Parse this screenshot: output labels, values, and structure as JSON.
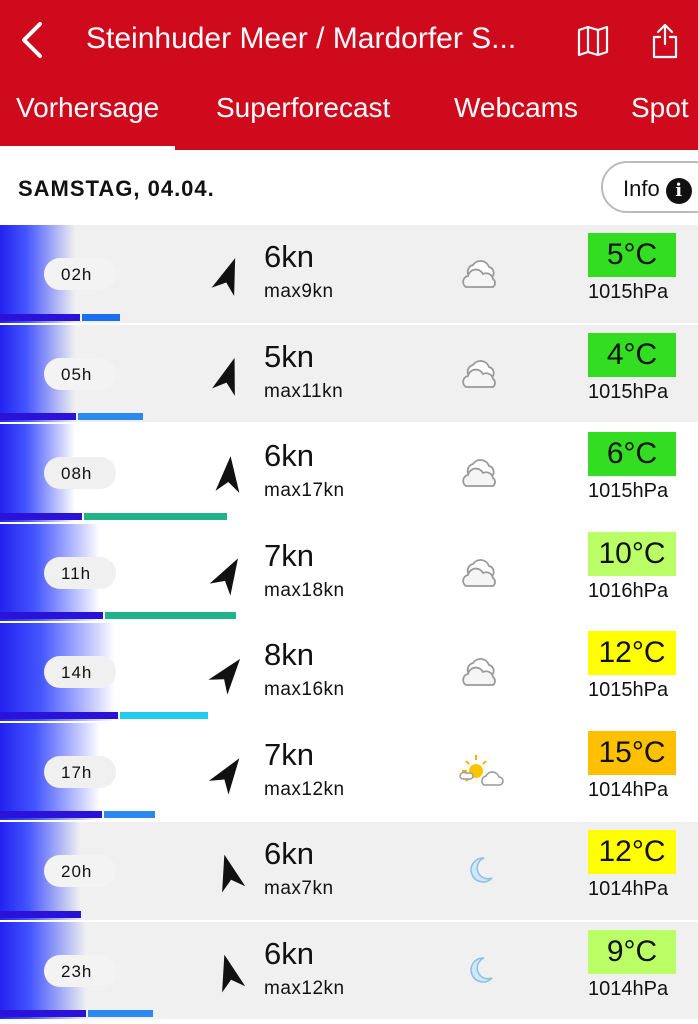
{
  "header": {
    "title": "Steinhuder Meer / Mardorfer S...",
    "back_icon": "chevron-left-icon",
    "map_icon": "map-icon",
    "share_icon": "share-icon"
  },
  "tabs": [
    {
      "label": "Vorhersage",
      "active": true
    },
    {
      "label": "Superforecast"
    },
    {
      "label": "Webcams"
    },
    {
      "label": "Spot"
    }
  ],
  "day": {
    "label": "SAMSTAG, 04.04.",
    "info_label": "Info",
    "info_icon": "i"
  },
  "colors": {
    "brand": "#cf0a1c"
  },
  "rows": [
    {
      "hour": "02h",
      "wind": "6kn",
      "gust": "max9kn",
      "dir": 20,
      "weather": "cloud",
      "temp": "5°C",
      "temp_color": "#33dd22",
      "pressure": "1015hPa",
      "bg": "gray",
      "gust_color": "#1a6ff0"
    },
    {
      "hour": "05h",
      "wind": "5kn",
      "gust": "max11kn",
      "dir": 18,
      "weather": "cloud",
      "temp": "4°C",
      "temp_color": "#33dd22",
      "pressure": "1015hPa",
      "bg": "gray",
      "gust_color": "#2a8af0"
    },
    {
      "hour": "08h",
      "wind": "6kn",
      "gust": "max17kn",
      "dir": 5,
      "weather": "cloud",
      "temp": "6°C",
      "temp_color": "#33dd22",
      "pressure": "1015hPa",
      "bg": "white",
      "gust_color": "#22b38a"
    },
    {
      "hour": "11h",
      "wind": "7kn",
      "gust": "max18kn",
      "dir": 30,
      "weather": "cloud",
      "temp": "10°C",
      "temp_color": "#bbff66",
      "pressure": "1016hPa",
      "bg": "white",
      "gust_color": "#22b38a"
    },
    {
      "hour": "14h",
      "wind": "8kn",
      "gust": "max16kn",
      "dir": 38,
      "weather": "cloud",
      "temp": "12°C",
      "temp_color": "#ffff00",
      "pressure": "1015hPa",
      "bg": "white",
      "gust_color": "#22ccee"
    },
    {
      "hour": "17h",
      "wind": "7kn",
      "gust": "max12kn",
      "dir": 35,
      "weather": "sun-cloud",
      "temp": "15°C",
      "temp_color": "#ffc000",
      "pressure": "1014hPa",
      "bg": "white",
      "gust_color": "#2a8af0"
    },
    {
      "hour": "20h",
      "wind": "6kn",
      "gust": "max7kn",
      "dir": -15,
      "weather": "moon",
      "temp": "12°C",
      "temp_color": "#ffff00",
      "pressure": "1014hPa",
      "bg": "gray",
      "gust_color": "#2a8af0"
    },
    {
      "hour": "23h",
      "wind": "6kn",
      "gust": "max12kn",
      "dir": -15,
      "weather": "moon",
      "temp": "9°C",
      "temp_color": "#bbff66",
      "pressure": "1014hPa",
      "bg": "gray",
      "gust_color": "#2a8af0"
    }
  ]
}
